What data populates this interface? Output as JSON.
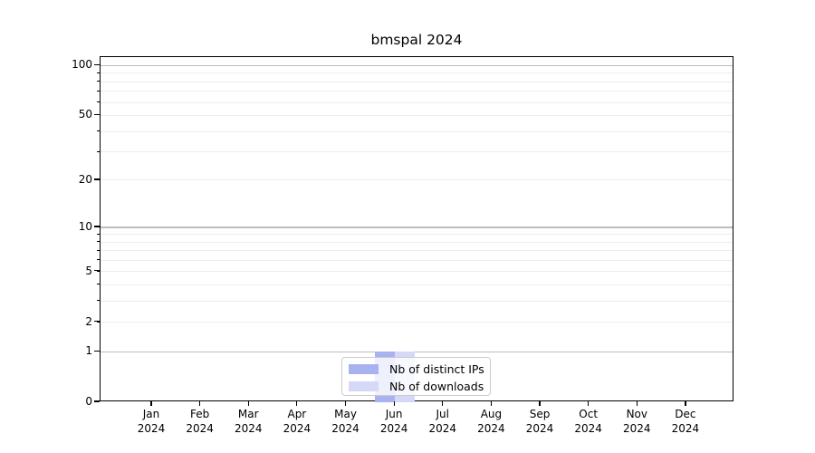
{
  "title": "bmspal 2024",
  "chart_data": {
    "type": "bar",
    "title": "bmspal 2024",
    "categories": [
      "Jan",
      "Feb",
      "Mar",
      "Apr",
      "May",
      "Jun",
      "Jul",
      "Aug",
      "Sep",
      "Oct",
      "Nov",
      "Dec"
    ],
    "x_year_label": "2024",
    "series": [
      {
        "name": "Nb of distinct IPs",
        "color": "#a9b2f0",
        "values": [
          0,
          0,
          0,
          0,
          0,
          1,
          0,
          0,
          0,
          0,
          0,
          0
        ]
      },
      {
        "name": "Nb of downloads",
        "color": "#d5d9f7",
        "values": [
          0,
          0,
          0,
          0,
          0,
          1,
          0,
          0,
          0,
          0,
          0,
          0
        ]
      }
    ],
    "yscale": "log1p",
    "yticks": [
      100,
      50,
      20,
      10,
      5,
      2,
      1,
      0
    ],
    "ylim": [
      0,
      112
    ],
    "xlabel": "",
    "ylabel": "",
    "grid": true,
    "legend_position": "lower center",
    "colors": {
      "major_grid": "#bdbdbd",
      "minor_grid": "#ededed",
      "frame": "#000000",
      "legend_border": "#cccccc"
    }
  }
}
